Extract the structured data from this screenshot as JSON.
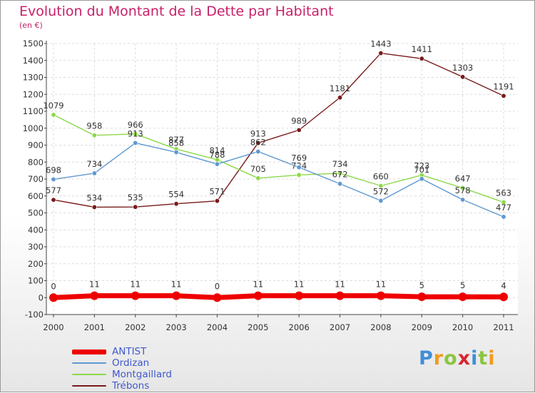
{
  "title": "Evolution du Montant de la Dette par Habitant",
  "subtitle": "(en €)",
  "logo_text": "Proxiti",
  "chart_data": {
    "type": "line",
    "title": "Evolution du Montant de la Dette par Habitant",
    "ylabel": "(en €)",
    "ylim": [
      -100,
      1500
    ],
    "yticks": [
      -100,
      0,
      100,
      200,
      300,
      400,
      500,
      600,
      700,
      800,
      900,
      1000,
      1100,
      1200,
      1300,
      1400,
      1500
    ],
    "categories": [
      "2000",
      "2001",
      "2002",
      "2003",
      "2004",
      "2005",
      "2006",
      "2007",
      "2008",
      "2009",
      "2010",
      "2011"
    ],
    "grid": true,
    "legend_position": "bottom-left",
    "series": [
      {
        "name": "Trébons",
        "color": "#7a1a1a",
        "values": [
          577,
          534,
          535,
          554,
          571,
          913,
          989,
          1181,
          1443,
          1411,
          1303,
          1191
        ]
      },
      {
        "name": "Montgaillard",
        "color": "#8ed84a",
        "values": [
          1079,
          958,
          966,
          877,
          814,
          705,
          724,
          734,
          660,
          723,
          647,
          563
        ]
      },
      {
        "name": "Ordizan",
        "color": "#5e98d0",
        "values": [
          698,
          734,
          913,
          858,
          788,
          862,
          769,
          672,
          572,
          701,
          578,
          477
        ]
      },
      {
        "name": "ANTIST",
        "color": "#ee0000",
        "values": [
          0,
          11,
          11,
          11,
          0,
          11,
          11,
          11,
          11,
          5,
          5,
          4
        ]
      }
    ]
  }
}
